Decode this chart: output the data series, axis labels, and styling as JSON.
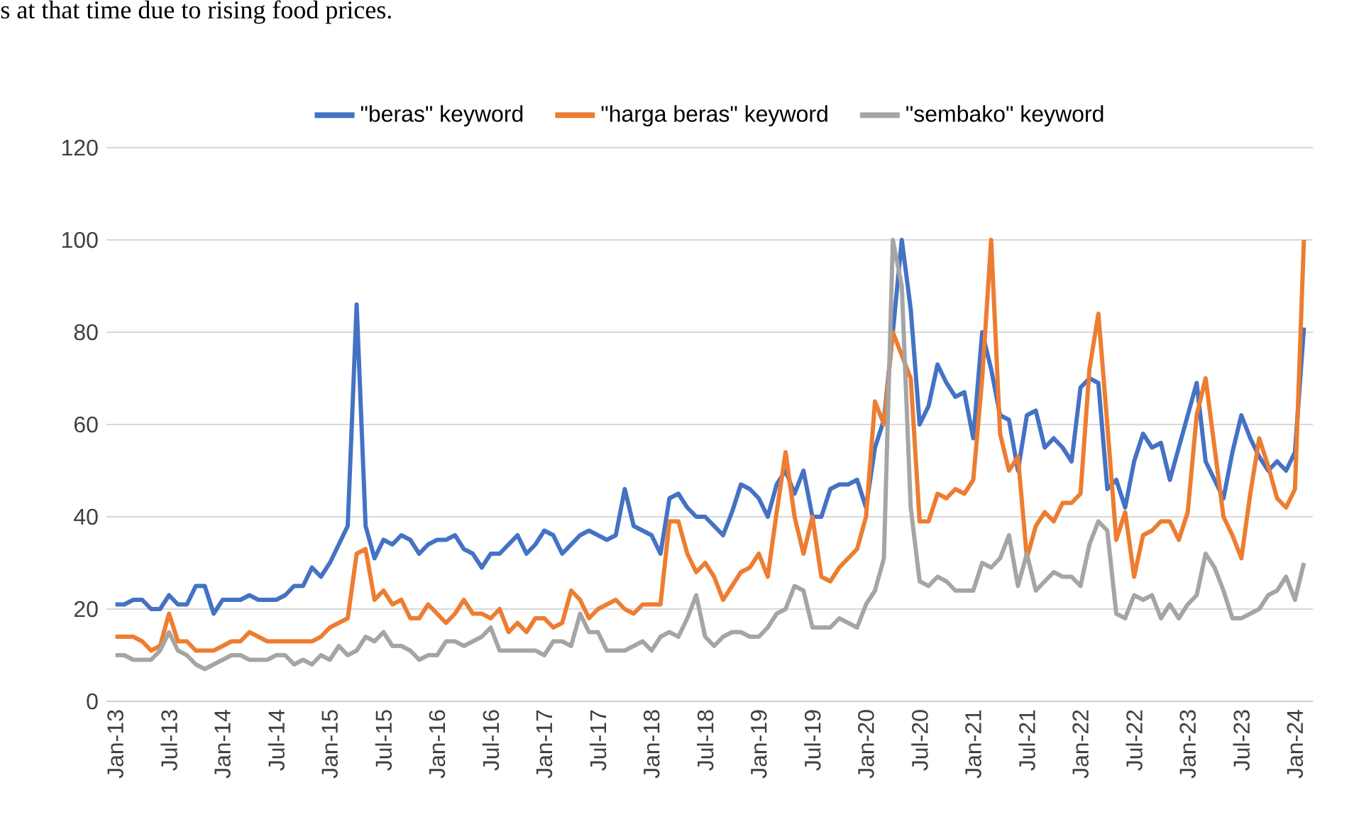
{
  "chart_data": {
    "type": "line",
    "annotations": [
      "s at that time due to rising food prices."
    ],
    "categories": [
      "Jan-13",
      null,
      null,
      null,
      null,
      null,
      "Jul-13",
      null,
      null,
      null,
      null,
      null,
      "Jan-14",
      null,
      null,
      null,
      null,
      null,
      "Jul-14",
      null,
      null,
      null,
      null,
      null,
      "Jan-15",
      null,
      null,
      null,
      null,
      null,
      "Jul-15",
      null,
      null,
      null,
      null,
      null,
      "Jan-16",
      null,
      null,
      null,
      null,
      null,
      "Jul-16",
      null,
      null,
      null,
      null,
      null,
      "Jan-17",
      null,
      null,
      null,
      null,
      null,
      "Jul-17",
      null,
      null,
      null,
      null,
      null,
      "Jan-18",
      null,
      null,
      null,
      null,
      null,
      "Jul-18",
      null,
      null,
      null,
      null,
      null,
      "Jan-19",
      null,
      null,
      null,
      null,
      null,
      "Jul-19",
      null,
      null,
      null,
      null,
      null,
      "Jan-20",
      null,
      null,
      null,
      null,
      null,
      "Jul-20",
      null,
      null,
      null,
      null,
      null,
      "Jan-21",
      null,
      null,
      null,
      null,
      null,
      "Jul-21",
      null,
      null,
      null,
      null,
      null,
      "Jan-22",
      null,
      null,
      null,
      null,
      null,
      "Jul-22",
      null,
      null,
      null,
      null,
      null,
      "Jan-23",
      null,
      null,
      null,
      null,
      null,
      "Jul-23",
      null,
      null,
      null,
      null,
      null,
      "Jan-24",
      null
    ],
    "series": [
      {
        "name": "\"beras\" keyword",
        "color": "#4472c4",
        "values": [
          21,
          21,
          22,
          22,
          20,
          20,
          23,
          21,
          21,
          25,
          25,
          19,
          22,
          22,
          22,
          23,
          22,
          22,
          22,
          23,
          25,
          25,
          29,
          27,
          30,
          34,
          38,
          86,
          38,
          31,
          35,
          34,
          36,
          35,
          32,
          34,
          35,
          35,
          36,
          33,
          32,
          29,
          32,
          32,
          34,
          36,
          32,
          34,
          37,
          36,
          32,
          34,
          36,
          37,
          36,
          35,
          36,
          46,
          38,
          37,
          36,
          32,
          44,
          45,
          42,
          40,
          40,
          38,
          36,
          41,
          47,
          46,
          44,
          40,
          47,
          50,
          45,
          50,
          40,
          40,
          46,
          47,
          47,
          48,
          42,
          55,
          61,
          80,
          100,
          85,
          60,
          64,
          73,
          69,
          66,
          67,
          57,
          80,
          72,
          62,
          61,
          50,
          62,
          63,
          55,
          57,
          55,
          52,
          68,
          70,
          69,
          46,
          48,
          42,
          52,
          58,
          55,
          56,
          48,
          55,
          62,
          69,
          52,
          48,
          44,
          54,
          62,
          57,
          53,
          50,
          52,
          50,
          54,
          81
        ]
      },
      {
        "name": "\"harga beras\" keyword",
        "color": "#ed7d31",
        "values": [
          14,
          14,
          14,
          13,
          11,
          12,
          19,
          13,
          13,
          11,
          11,
          11,
          12,
          13,
          13,
          15,
          14,
          13,
          13,
          13,
          13,
          13,
          13,
          14,
          16,
          17,
          18,
          32,
          33,
          22,
          24,
          21,
          22,
          18,
          18,
          21,
          19,
          17,
          19,
          22,
          19,
          19,
          18,
          20,
          15,
          17,
          15,
          18,
          18,
          16,
          17,
          24,
          22,
          18,
          20,
          21,
          22,
          20,
          19,
          21,
          21,
          21,
          39,
          39,
          32,
          28,
          30,
          27,
          22,
          25,
          28,
          29,
          32,
          27,
          41,
          54,
          40,
          32,
          40,
          27,
          26,
          29,
          31,
          33,
          40,
          65,
          60,
          80,
          75,
          70,
          39,
          39,
          45,
          44,
          46,
          45,
          48,
          70,
          100,
          58,
          50,
          53,
          31,
          38,
          41,
          39,
          43,
          43,
          45,
          72,
          84,
          60,
          35,
          41,
          27,
          36,
          37,
          39,
          39,
          35,
          41,
          62,
          70,
          55,
          40,
          36,
          31,
          45,
          57,
          51,
          44,
          42,
          46,
          100
        ]
      },
      {
        "name": "\"sembako\" keyword",
        "color": "#a5a5a5",
        "values": [
          10,
          10,
          9,
          9,
          9,
          11,
          15,
          11,
          10,
          8,
          7,
          8,
          9,
          10,
          10,
          9,
          9,
          9,
          10,
          10,
          8,
          9,
          8,
          10,
          9,
          12,
          10,
          11,
          14,
          13,
          15,
          12,
          12,
          11,
          9,
          10,
          10,
          13,
          13,
          12,
          13,
          14,
          16,
          11,
          11,
          11,
          11,
          11,
          10,
          13,
          13,
          12,
          19,
          15,
          15,
          11,
          11,
          11,
          12,
          13,
          11,
          14,
          15,
          14,
          18,
          23,
          14,
          12,
          14,
          15,
          15,
          14,
          14,
          16,
          19,
          20,
          25,
          24,
          16,
          16,
          16,
          18,
          17,
          16,
          21,
          24,
          31,
          100,
          90,
          42,
          26,
          25,
          27,
          26,
          24,
          24,
          24,
          30,
          29,
          31,
          36,
          25,
          32,
          24,
          26,
          28,
          27,
          27,
          25,
          34,
          39,
          37,
          19,
          18,
          23,
          22,
          23,
          18,
          21,
          18,
          21,
          23,
          32,
          29,
          24,
          18,
          18,
          19,
          20,
          23,
          24,
          27,
          22,
          30
        ]
      }
    ],
    "ylim": [
      0,
      120
    ],
    "yticks": [
      0,
      20,
      40,
      60,
      80,
      100,
      120
    ],
    "grid": "y",
    "legend": "top",
    "marker": "none",
    "line_style": "solid"
  }
}
